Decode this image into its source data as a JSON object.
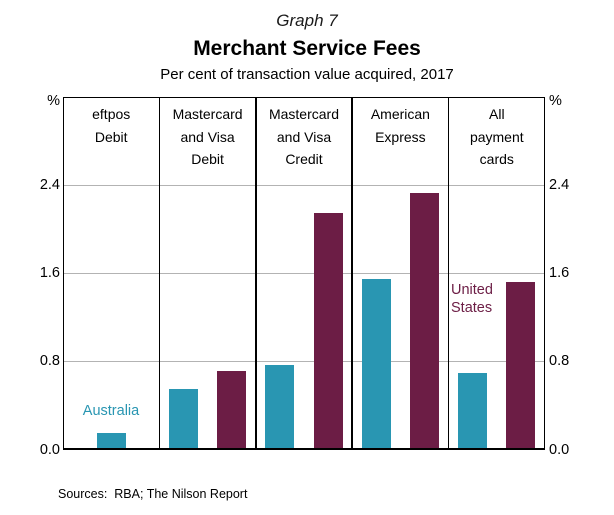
{
  "header": {
    "graph_label": "Graph 7",
    "title": "Merchant Service Fees",
    "subtitle": "Per cent of transaction value acquired, 2017"
  },
  "chart_data": {
    "type": "bar",
    "title": "Merchant Service Fees",
    "subtitle": "Per cent of transaction value acquired, 2017",
    "unit_symbol": "%",
    "ylim": [
      0,
      3.2
    ],
    "yticks": [
      0.0,
      0.8,
      1.6,
      2.4
    ],
    "grid": true,
    "legend_position": "in-panel annotations",
    "categories": [
      "eftpos Debit",
      "Mastercard and Visa Debit",
      "Mastercard and Visa Credit",
      "American Express",
      "All payment cards"
    ],
    "category_lines": [
      [
        "eftpos",
        "Debit"
      ],
      [
        "Mastercard",
        "and Visa",
        "Debit"
      ],
      [
        "Mastercard",
        "and Visa",
        "Credit"
      ],
      [
        "American",
        "Express"
      ],
      [
        "All",
        "payment",
        "cards"
      ]
    ],
    "series": [
      {
        "name": "Australia",
        "color": "#2996b2",
        "values": [
          0.15,
          0.55,
          0.77,
          1.55,
          0.7
        ]
      },
      {
        "name": "United States",
        "color": "#6c1d45",
        "values": [
          null,
          0.72,
          2.15,
          2.33,
          1.52
        ]
      }
    ],
    "colors": {
      "frame": "#000000",
      "gridline": "#b3b3b3"
    }
  },
  "footer": {
    "sources": "Sources:  RBA; The Nilson Report"
  }
}
